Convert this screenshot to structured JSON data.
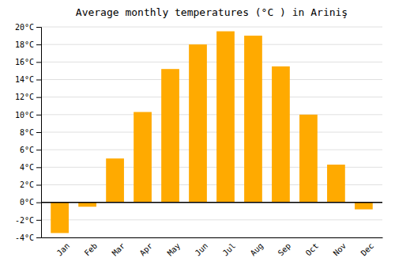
{
  "chart_data": {
    "type": "bar",
    "title": "Average monthly temperatures (°C ) in Ariniş",
    "categories": [
      "Jan",
      "Feb",
      "Mar",
      "Apr",
      "May",
      "Jun",
      "Jul",
      "Aug",
      "Sep",
      "Oct",
      "Nov",
      "Dec"
    ],
    "values": [
      -3.5,
      -0.5,
      5.0,
      10.3,
      15.2,
      18.0,
      19.5,
      19.0,
      15.5,
      10.0,
      4.3,
      -0.8
    ],
    "color": "#FFAA00",
    "ylim": [
      -4,
      20
    ],
    "yticks": [
      {
        "value": -4,
        "label": "-4°C"
      },
      {
        "value": -2,
        "label": "-2°C"
      },
      {
        "value": 0,
        "label": "0°C"
      },
      {
        "value": 2,
        "label": "2°C"
      },
      {
        "value": 4,
        "label": "4°C"
      },
      {
        "value": 6,
        "label": "6°C"
      },
      {
        "value": 8,
        "label": "8°C"
      },
      {
        "value": 10,
        "label": "10°C"
      },
      {
        "value": 12,
        "label": "12°C"
      },
      {
        "value": 14,
        "label": "14°C"
      },
      {
        "value": 16,
        "label": "16°C"
      },
      {
        "value": 18,
        "label": "18°C"
      },
      {
        "value": 20,
        "label": "20°C"
      }
    ],
    "grid": true
  }
}
